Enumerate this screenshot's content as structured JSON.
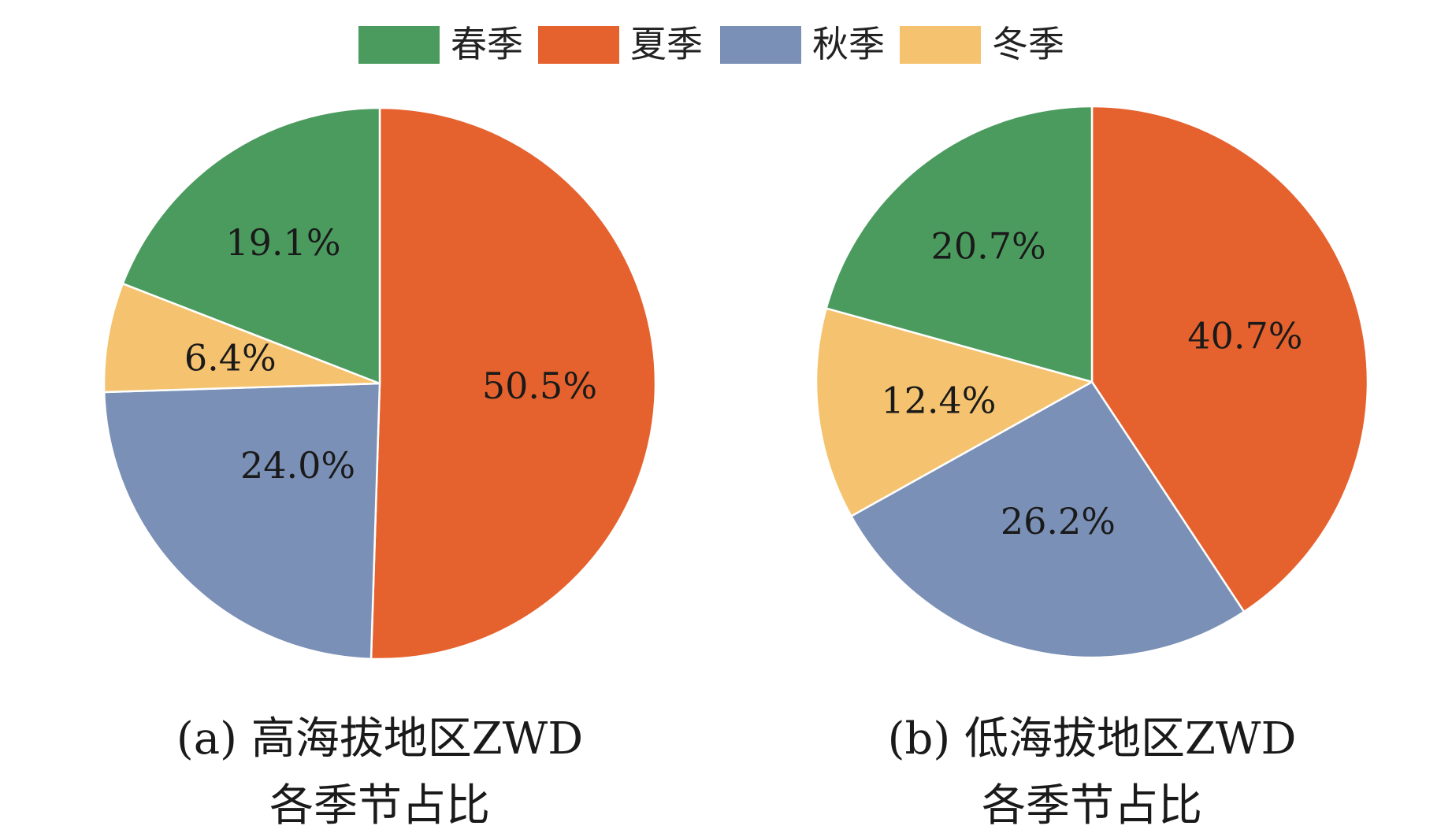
{
  "legend": {
    "placement": "top-center",
    "items": [
      {
        "label": "春季",
        "color": "#4b9b5f"
      },
      {
        "label": "夏季",
        "color": "#e5622e"
      },
      {
        "label": "秋季",
        "color": "#7a90b6"
      },
      {
        "label": "冬季",
        "color": "#f5c36f"
      }
    ]
  },
  "chart_data": [
    {
      "type": "pie",
      "title_lines": [
        "(a) 高海拔地区ZWD",
        "各季节占比"
      ],
      "slices": [
        {
          "label": "春季",
          "value": 19.1,
          "display": "19.1%",
          "color": "#4b9b5f"
        },
        {
          "label": "夏季",
          "value": 50.5,
          "display": "50.5%",
          "color": "#e5622e"
        },
        {
          "label": "秋季",
          "value": 24.0,
          "display": "24.0%",
          "color": "#7a90b6"
        },
        {
          "label": "冬季",
          "value": 6.4,
          "display": "6.4%",
          "color": "#f5c36f"
        }
      ],
      "slice_order_clockwise_from_top": [
        "夏季",
        "秋季",
        "冬季",
        "春季"
      ]
    },
    {
      "type": "pie",
      "title_lines": [
        "(b) 低海拔地区ZWD",
        "各季节占比"
      ],
      "slices": [
        {
          "label": "春季",
          "value": 20.7,
          "display": "20.7%",
          "color": "#4b9b5f"
        },
        {
          "label": "夏季",
          "value": 40.7,
          "display": "40.7%",
          "color": "#e5622e"
        },
        {
          "label": "秋季",
          "value": 26.2,
          "display": "26.2%",
          "color": "#7a90b6"
        },
        {
          "label": "冬季",
          "value": 12.4,
          "display": "12.4%",
          "color": "#f5c36f"
        }
      ],
      "slice_order_clockwise_from_top": [
        "夏季",
        "秋季",
        "冬季",
        "春季"
      ]
    }
  ]
}
